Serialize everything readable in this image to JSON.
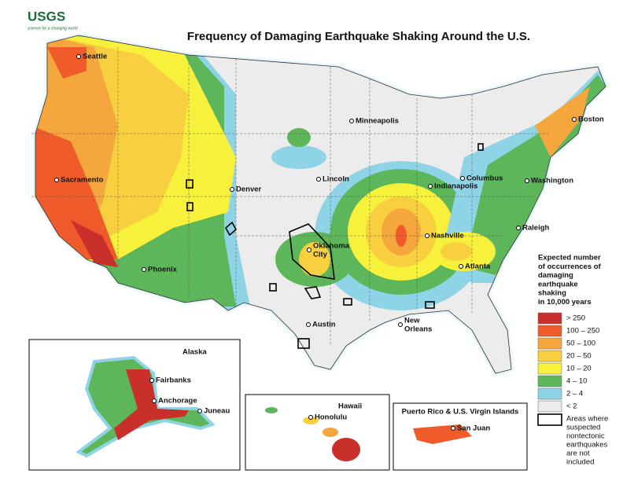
{
  "header": {
    "logo": "USGS",
    "tagline": "science for a changing world",
    "title": "Frequency of Damaging Earthquake Shaking Around the U.S."
  },
  "cities": [
    {
      "lines": [
        "Seattle"
      ]
    },
    {
      "lines": [
        "Sacramento"
      ]
    },
    {
      "lines": [
        "Phoenix"
      ]
    },
    {
      "lines": [
        "Denver"
      ]
    },
    {
      "lines": [
        "Lincoln"
      ]
    },
    {
      "lines": [
        "Minneapolis"
      ]
    },
    {
      "lines": [
        "Oklahoma",
        "City"
      ]
    },
    {
      "lines": [
        "Austin"
      ]
    },
    {
      "lines": [
        "New",
        "Orleans"
      ]
    },
    {
      "lines": [
        "Nashville"
      ]
    },
    {
      "lines": [
        "Indianapolis"
      ]
    },
    {
      "lines": [
        "Columbus"
      ]
    },
    {
      "lines": [
        "Atlanta"
      ]
    },
    {
      "lines": [
        "Raleigh"
      ]
    },
    {
      "lines": [
        "Washington"
      ]
    },
    {
      "lines": [
        "Boston"
      ]
    },
    {
      "lines": [
        "Fairbanks"
      ]
    },
    {
      "lines": [
        "Anchorage"
      ]
    },
    {
      "lines": [
        "Juneau"
      ]
    },
    {
      "lines": [
        "Honolulu"
      ]
    },
    {
      "lines": [
        "San Juan"
      ]
    }
  ],
  "insets": {
    "alaska": "Alaska",
    "hawaii": "Hawaii",
    "puerto_rico": "Puerto Rico & U.S. Virgin Islands"
  },
  "legend": {
    "title": [
      "Expected number",
      "of occurrences of",
      "damaging",
      "earthquake",
      "shaking",
      "in 10,000 years"
    ],
    "items": [
      {
        "label": "> 250",
        "color": "#c9302c"
      },
      {
        "label": "100 – 250",
        "color": "#ef5b2b"
      },
      {
        "label": "50 – 100",
        "color": "#f5a63c"
      },
      {
        "label": "20 – 50",
        "color": "#f8d03f"
      },
      {
        "label": "10 – 20",
        "color": "#f7f13c"
      },
      {
        "label": "4 – 10",
        "color": "#5db65a"
      },
      {
        "label": "2 – 4",
        "color": "#8fd3e6"
      },
      {
        "label": "< 2",
        "color": "#ececec"
      }
    ],
    "note": [
      "Areas where",
      "suspected",
      "nontectonic",
      "earthquakes",
      "are not",
      "included"
    ]
  }
}
